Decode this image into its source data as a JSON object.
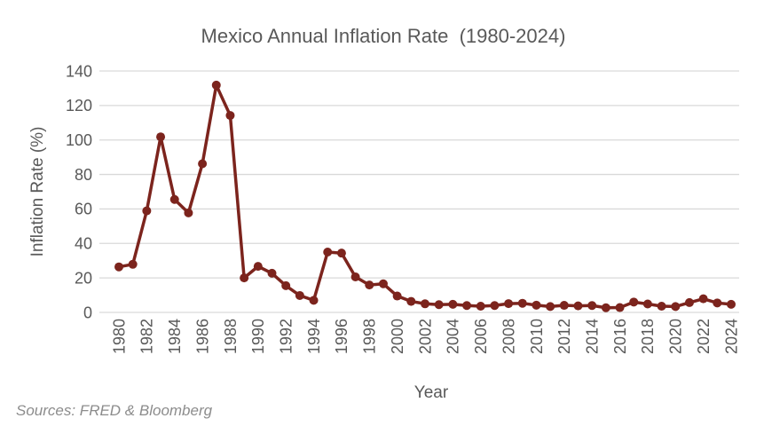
{
  "title": "Mexico Annual Inflation Rate  (1980-2024)",
  "source_note": "Sources: FRED & Bloomberg",
  "colors": {
    "line": "#7C241D",
    "marker": "#7C241D",
    "gridline": "#D9D9D9",
    "axis_text": "#595959",
    "source_text": "#8C8C8C",
    "background": "#FFFFFF"
  },
  "chart_data": {
    "type": "line",
    "title": "Mexico Annual Inflation Rate  (1980-2024)",
    "xlabel": "Year",
    "ylabel": "Inflation Rate (%)",
    "x": [
      1980,
      1981,
      1982,
      1983,
      1984,
      1985,
      1986,
      1987,
      1988,
      1989,
      1990,
      1991,
      1992,
      1993,
      1994,
      1995,
      1996,
      1997,
      1998,
      1999,
      2000,
      2001,
      2002,
      2003,
      2004,
      2005,
      2006,
      2007,
      2008,
      2009,
      2010,
      2011,
      2012,
      2013,
      2014,
      2015,
      2016,
      2017,
      2018,
      2019,
      2020,
      2021,
      2022,
      2023,
      2024
    ],
    "values": [
      26.4,
      27.9,
      58.9,
      101.8,
      65.5,
      57.7,
      86.2,
      131.8,
      114.2,
      20.0,
      26.7,
      22.7,
      15.5,
      9.8,
      7.0,
      35.0,
      34.4,
      20.6,
      15.9,
      16.6,
      9.5,
      6.4,
      5.0,
      4.5,
      4.7,
      4.0,
      3.6,
      4.0,
      5.1,
      5.3,
      4.2,
      3.4,
      4.1,
      3.8,
      4.0,
      2.7,
      2.8,
      6.0,
      4.9,
      3.6,
      3.4,
      5.7,
      7.9,
      5.5,
      4.7
    ],
    "ylim": [
      0,
      140
    ],
    "ytick_step": 20,
    "ytick_labels": [
      "0",
      "20",
      "40",
      "60",
      "80",
      "100",
      "120",
      "140"
    ],
    "xtick_step": 2,
    "xtick_labels": [
      "1980",
      "1982",
      "1984",
      "1986",
      "1988",
      "1990",
      "1992",
      "1994",
      "1996",
      "1998",
      "2000",
      "2002",
      "2004",
      "2006",
      "2008",
      "2010",
      "2012",
      "2014",
      "2016",
      "2018",
      "2020",
      "2022",
      "2024"
    ],
    "grid": true,
    "legend_position": "none",
    "marker": "circle"
  }
}
